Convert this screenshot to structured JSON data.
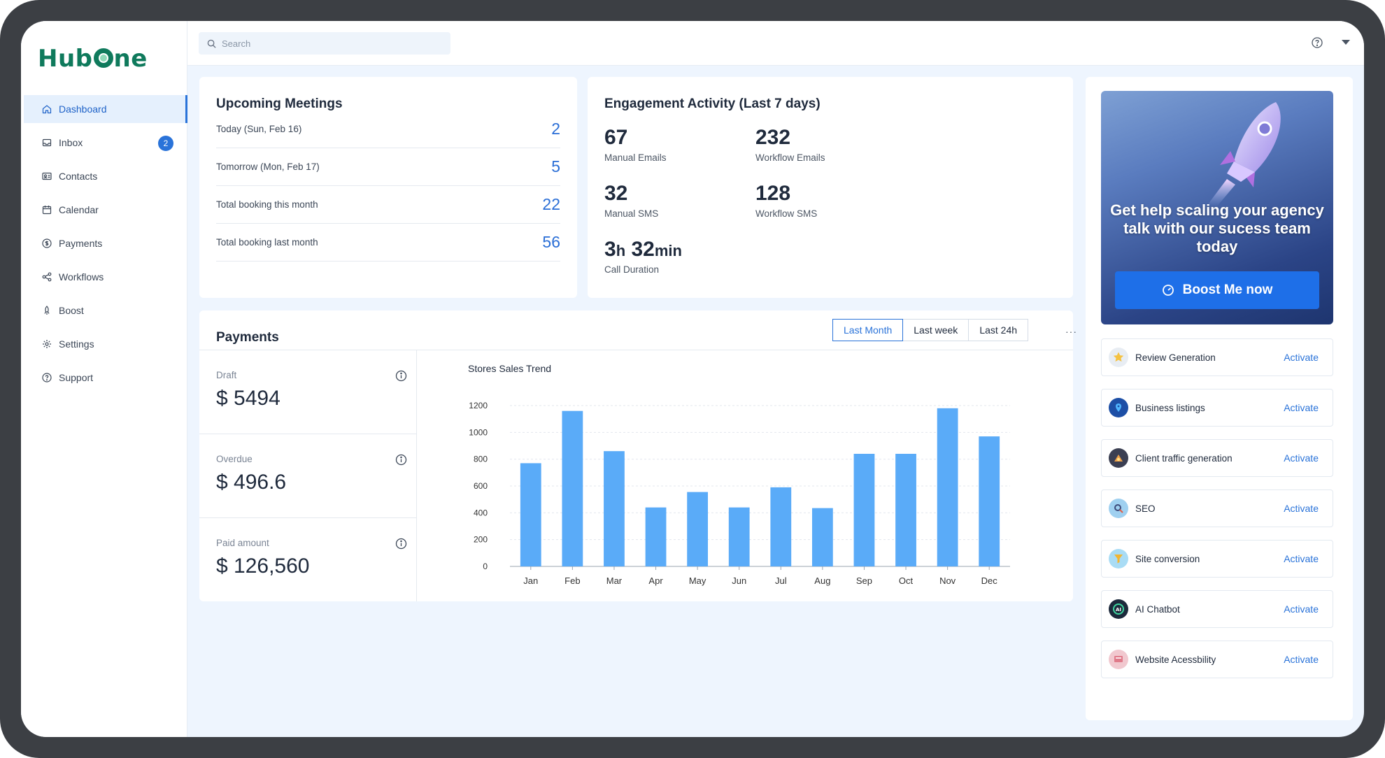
{
  "app": {
    "logo_text": "HubOne"
  },
  "sidebar": {
    "items": [
      {
        "label": "Dashboard",
        "icon": "home-icon",
        "active": true
      },
      {
        "label": "Inbox",
        "icon": "inbox-icon",
        "badge": "2"
      },
      {
        "label": "Contacts",
        "icon": "contacts-icon"
      },
      {
        "label": "Calendar",
        "icon": "calendar-icon"
      },
      {
        "label": "Payments",
        "icon": "dollar-icon"
      },
      {
        "label": "Workflows",
        "icon": "workflow-icon"
      },
      {
        "label": "Boost",
        "icon": "rocket-icon"
      },
      {
        "label": "Settings",
        "icon": "gear-icon"
      },
      {
        "label": "Support",
        "icon": "question-icon"
      }
    ]
  },
  "header": {
    "search_placeholder": "Search"
  },
  "meetings": {
    "title": "Upcoming Meetings",
    "rows": [
      {
        "label": "Today (Sun, Feb 16)",
        "value": "2"
      },
      {
        "label": "Tomorrow (Mon, Feb 17)",
        "value": "5"
      },
      {
        "label": "Total booking this month",
        "value": "22"
      },
      {
        "label": "Total booking last month",
        "value": "56"
      }
    ]
  },
  "engagement": {
    "title": "Engagement Activity (Last 7 days)",
    "manual_emails": {
      "value": "67",
      "label": "Manual Emails"
    },
    "workflow_emails": {
      "value": "232",
      "label": "Workflow Emails"
    },
    "manual_sms": {
      "value": "32",
      "label": "Manual SMS"
    },
    "workflow_sms": {
      "value": "128",
      "label": "Workflow SMS"
    },
    "call_duration": {
      "hours": "3",
      "hours_unit": "h",
      "minutes": "32",
      "minutes_unit": "min",
      "label": "Call Duration"
    }
  },
  "payments": {
    "title": "Payments",
    "filters": [
      "Last Month",
      "Last week",
      "Last 24h"
    ],
    "active_filter": "Last Month",
    "more": "···",
    "summary": [
      {
        "label": "Draft",
        "value": "$  5494"
      },
      {
        "label": "Overdue",
        "value": "$  496.6"
      },
      {
        "label": "Paid amount",
        "value": "$ 126,560"
      }
    ]
  },
  "chart_data": {
    "type": "bar",
    "title": "Stores Sales Trend",
    "categories": [
      "Jan",
      "Feb",
      "Mar",
      "Apr",
      "May",
      "Jun",
      "Jul",
      "Aug",
      "Sep",
      "Oct",
      "Nov",
      "Dec"
    ],
    "values": [
      770,
      1160,
      860,
      440,
      555,
      440,
      590,
      435,
      840,
      840,
      1180,
      970
    ],
    "ylim": [
      0,
      1200
    ],
    "yticks": [
      0,
      200,
      400,
      600,
      800,
      1000,
      1200
    ],
    "grid": true,
    "bar_color": "#5aabf8"
  },
  "promo": {
    "text": "Get help scaling your agency talk with our sucess team today",
    "button_label": "Boost Me now"
  },
  "services": [
    {
      "name": "Review Generation",
      "action": "Activate",
      "icon": "star-icon"
    },
    {
      "name": "Business listings",
      "action": "Activate",
      "icon": "map-pin-icon"
    },
    {
      "name": "Client traffic generation",
      "action": "Activate",
      "icon": "traffic-icon"
    },
    {
      "name": "SEO",
      "action": "Activate",
      "icon": "seo-icon"
    },
    {
      "name": "Site conversion",
      "action": "Activate",
      "icon": "funnel-icon"
    },
    {
      "name": "AI Chatbot",
      "action": "Activate",
      "icon": "ai-chatbot-icon"
    },
    {
      "name": "Website Acessbility",
      "action": "Activate",
      "icon": "accessibility-icon"
    }
  ],
  "colors": {
    "accent": "#2a73d9",
    "brand": "#0f7a5c",
    "bar": "#5aabf8"
  }
}
